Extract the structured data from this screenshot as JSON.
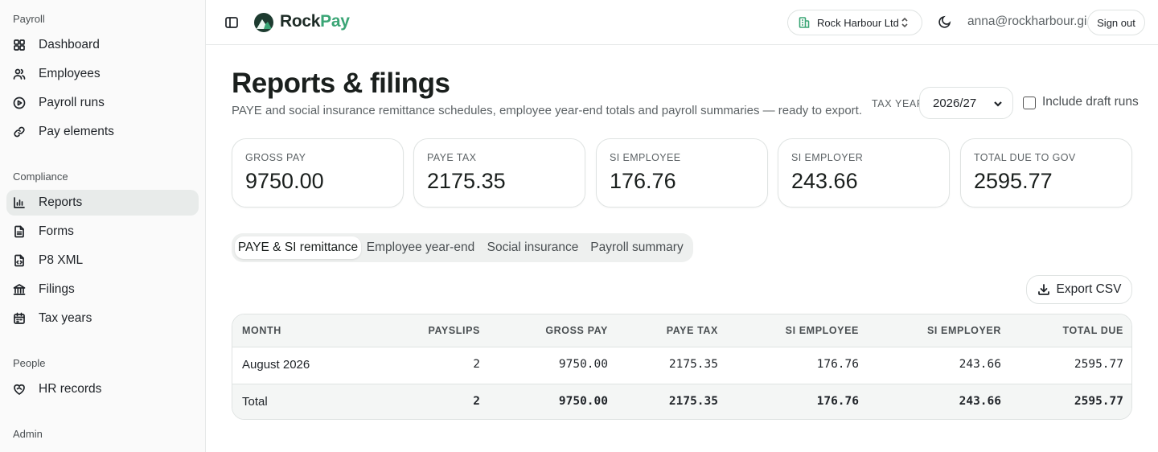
{
  "sidebar": {
    "groups": [
      {
        "title": "Payroll",
        "items": [
          {
            "label": "Dashboard",
            "icon": "grid-icon"
          },
          {
            "label": "Employees",
            "icon": "users-icon"
          },
          {
            "label": "Payroll runs",
            "icon": "play-circle-icon"
          },
          {
            "label": "Pay elements",
            "icon": "link-icon"
          }
        ]
      },
      {
        "title": "Compliance",
        "items": [
          {
            "label": "Reports",
            "icon": "bar-chart-icon",
            "active": true
          },
          {
            "label": "Forms",
            "icon": "file-text-icon"
          },
          {
            "label": "P8 XML",
            "icon": "code-file-icon"
          },
          {
            "label": "Filings",
            "icon": "bank-icon"
          },
          {
            "label": "Tax years",
            "icon": "calendar-icon"
          }
        ]
      },
      {
        "title": "People",
        "items": [
          {
            "label": "HR records",
            "icon": "heart-handshake-icon"
          }
        ]
      },
      {
        "title": "Admin",
        "items": []
      }
    ]
  },
  "header": {
    "brand_rock": "Rock",
    "brand_pay": "Pay",
    "company": "Rock Harbour Ltd",
    "user_email": "anna@rockharbour.gi",
    "sign_out": "Sign out"
  },
  "page": {
    "title": "Reports & filings",
    "subtitle": "PAYE and social insurance remittance schedules, employee year-end totals and payroll summaries — ready to export.",
    "tax_year_label": "TAX YEAR",
    "tax_year_value": "2026/27",
    "include_draft_label": "Include draft runs",
    "include_draft_checked": false
  },
  "stats": [
    {
      "label": "GROSS PAY",
      "value": "9750.00"
    },
    {
      "label": "PAYE TAX",
      "value": "2175.35"
    },
    {
      "label": "SI EMPLOYEE",
      "value": "176.76"
    },
    {
      "label": "SI EMPLOYER",
      "value": "243.66"
    },
    {
      "label": "TOTAL DUE TO GOV",
      "value": "2595.77"
    }
  ],
  "tabs": [
    {
      "label": "PAYE & SI remittance",
      "active": true
    },
    {
      "label": "Employee year-end",
      "active": false
    },
    {
      "label": "Social insurance",
      "active": false
    },
    {
      "label": "Payroll summary",
      "active": false
    }
  ],
  "export_label": "Export CSV",
  "table": {
    "headers": [
      "MONTH",
      "PAYSLIPS",
      "GROSS PAY",
      "PAYE TAX",
      "SI EMPLOYEE",
      "SI EMPLOYER",
      "TOTAL DUE"
    ],
    "rows": [
      [
        "August 2026",
        "2",
        "9750.00",
        "2175.35",
        "176.76",
        "243.66",
        "2595.77"
      ]
    ],
    "total": [
      "Total",
      "2",
      "9750.00",
      "2175.35",
      "176.76",
      "243.66",
      "2595.77"
    ]
  },
  "colors": {
    "accent": "#3aa575",
    "brand_dark": "#1d3b30",
    "active_nav_bg": "#e8ebea"
  }
}
